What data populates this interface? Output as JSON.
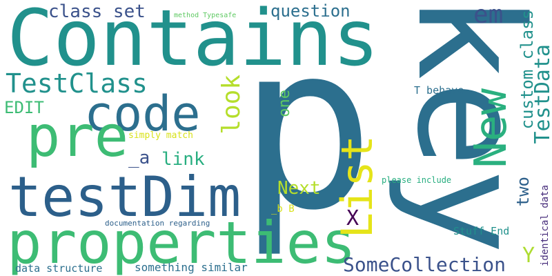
{
  "colors": {
    "background": "#ffffff",
    "palette": [
      "#440154",
      "#472d7b",
      "#3b528b",
      "#2c728e",
      "#21918c",
      "#28ae80",
      "#5ec962",
      "#addc30",
      "#fde725"
    ]
  },
  "words": {
    "p": "p",
    "key": "key",
    "contains": "Contains",
    "properties": "properties",
    "testdim": "testDim",
    "code": "code",
    "pre": "pre",
    "list": "List",
    "new": "New",
    "testclass": "TestClass",
    "class_set": "class set",
    "question": "question",
    "em": "em",
    "look": "look",
    "somecollection": "SomeCollection",
    "testdata": "TestData",
    "custom_class": "custom class",
    "two": "two",
    "edit": "EDIT",
    "one": "one",
    "a_link_prefix": "_a",
    "link": "link",
    "next": "Next",
    "x": "X",
    "y": "Y",
    "t_behave": "T behave",
    "simply_match": "simply match",
    "please_include": "please include",
    "b_b": "_b B",
    "documentation_regarding": "documentation regarding",
    "stuff_end": "Stuff End",
    "identical_data": "identical data",
    "data_structure": "data structure",
    "something_similar": "something similar",
    "method_typesafe": "method Typesafe"
  }
}
